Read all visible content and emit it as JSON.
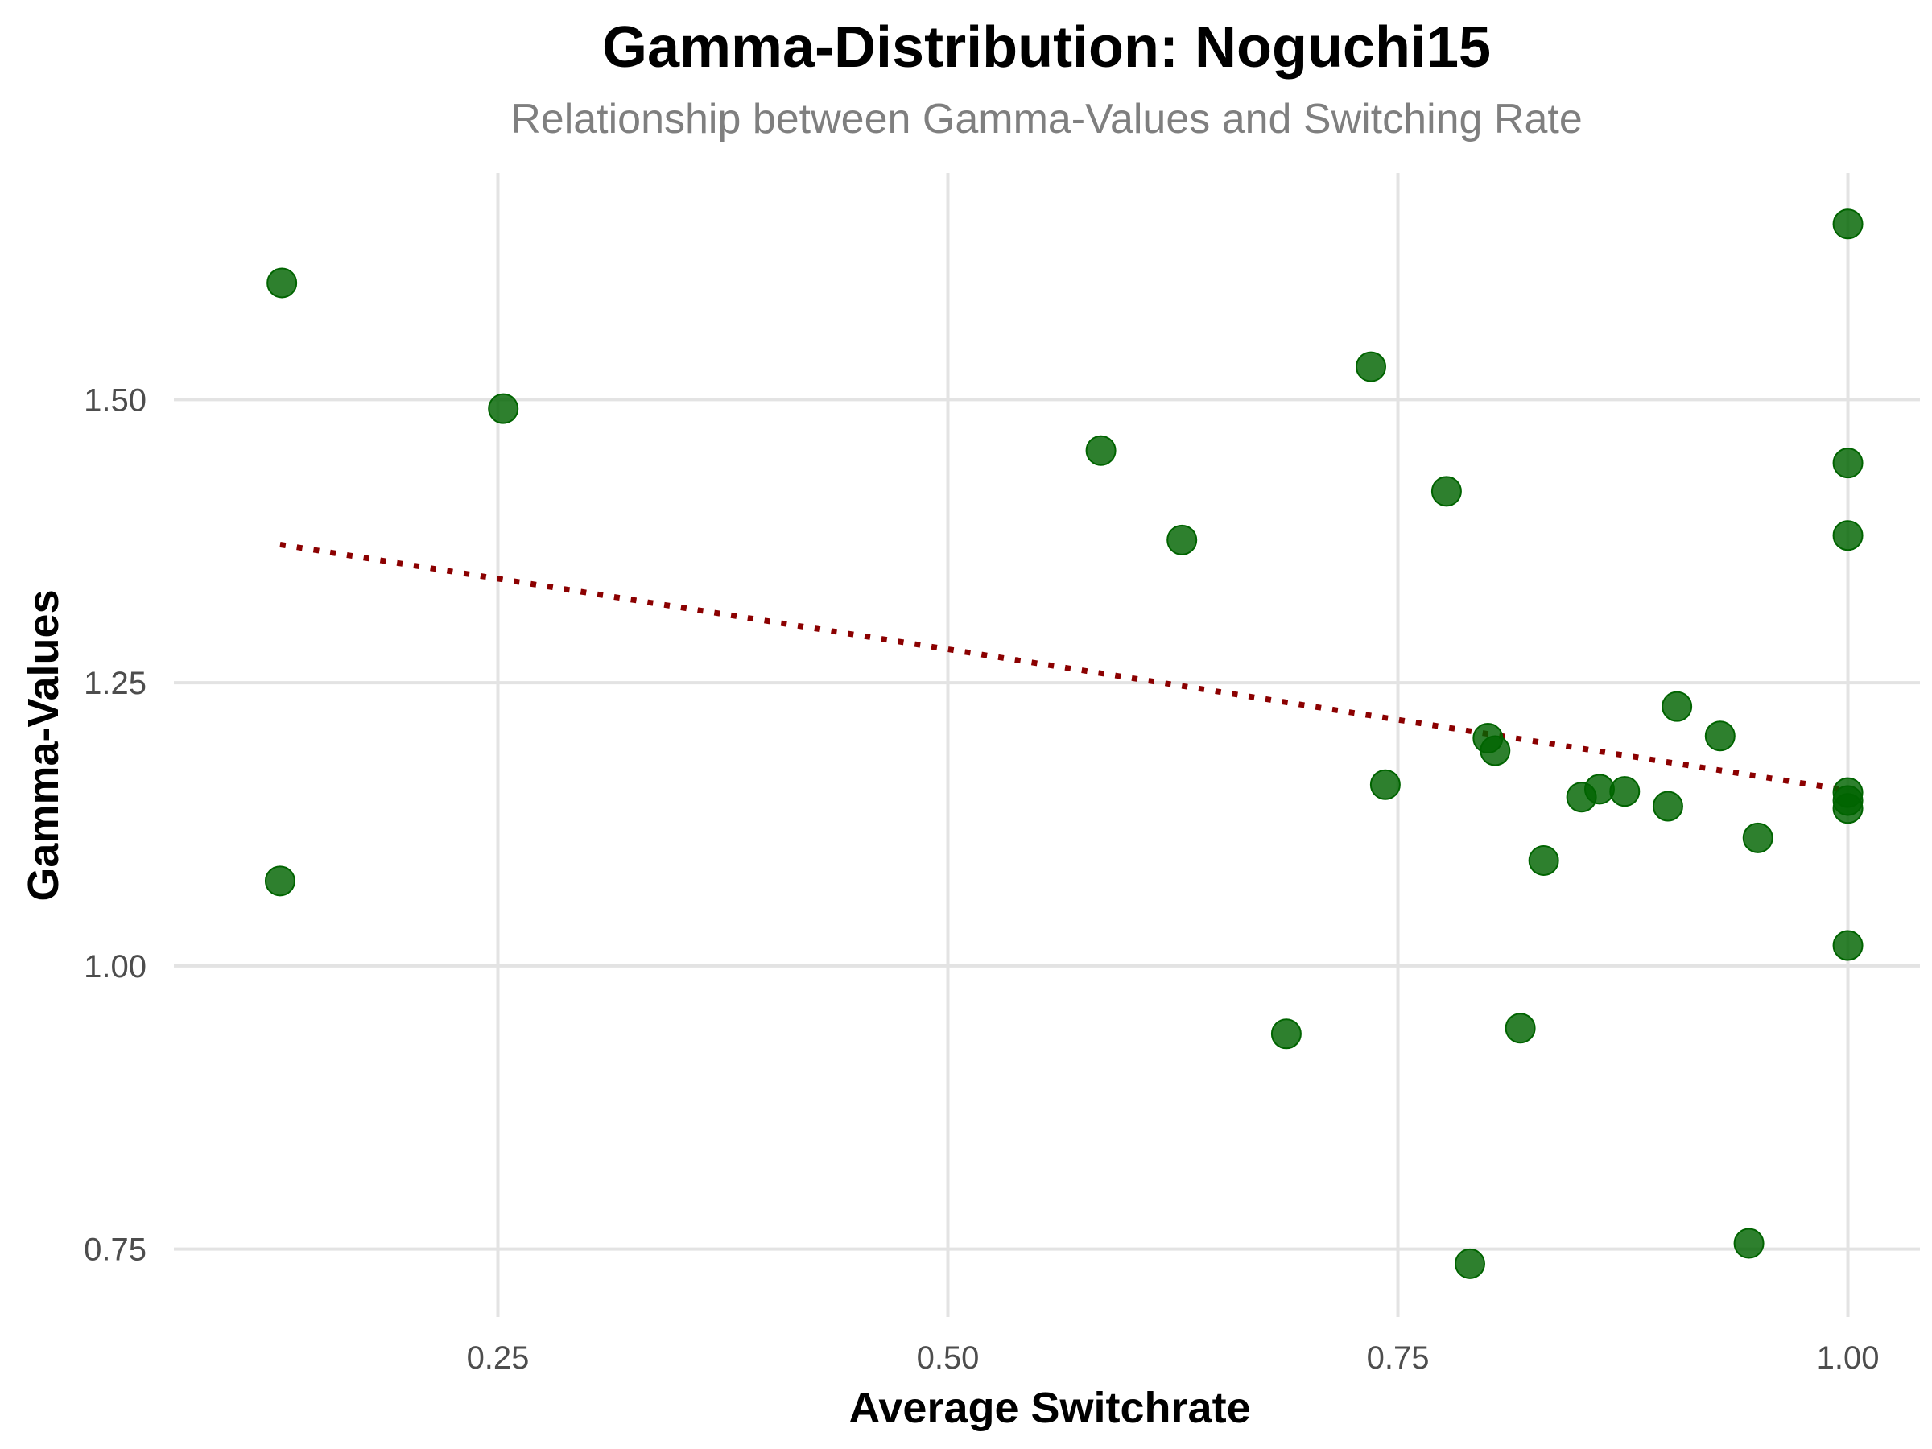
{
  "chart_data": {
    "type": "scatter",
    "title": "Gamma-Distribution: Noguchi15",
    "subtitle": "Relationship between Gamma-Values and Switching Rate",
    "xlabel": "Average Switchrate",
    "ylabel": "Gamma-Values",
    "xlim": [
      0.07,
      1.04
    ],
    "ylim": [
      0.69,
      1.7
    ],
    "xticks": [
      0.25,
      0.5,
      0.75,
      1.0
    ],
    "xtick_labels": [
      "0.25",
      "0.50",
      "0.75",
      "1.00"
    ],
    "yticks": [
      0.75,
      1.0,
      1.25,
      1.5
    ],
    "ytick_labels": [
      "0.75",
      "1.00",
      "1.25",
      "1.50"
    ],
    "grid": true,
    "point_color": "#006400",
    "trend_color": "#8b0000",
    "points": [
      {
        "x": 0.13,
        "y": 1.603
      },
      {
        "x": 0.129,
        "y": 1.075
      },
      {
        "x": 0.253,
        "y": 1.492
      },
      {
        "x": 0.585,
        "y": 1.455
      },
      {
        "x": 0.63,
        "y": 1.376
      },
      {
        "x": 0.688,
        "y": 0.94
      },
      {
        "x": 0.735,
        "y": 1.529
      },
      {
        "x": 0.743,
        "y": 1.16
      },
      {
        "x": 0.777,
        "y": 1.419
      },
      {
        "x": 0.79,
        "y": 0.737
      },
      {
        "x": 0.8,
        "y": 1.201
      },
      {
        "x": 0.804,
        "y": 1.19
      },
      {
        "x": 0.818,
        "y": 0.945
      },
      {
        "x": 0.831,
        "y": 1.093
      },
      {
        "x": 0.852,
        "y": 1.149
      },
      {
        "x": 0.862,
        "y": 1.156
      },
      {
        "x": 0.876,
        "y": 1.154
      },
      {
        "x": 0.9,
        "y": 1.141
      },
      {
        "x": 0.905,
        "y": 1.229
      },
      {
        "x": 0.929,
        "y": 1.203
      },
      {
        "x": 0.945,
        "y": 0.755
      },
      {
        "x": 0.95,
        "y": 1.113
      },
      {
        "x": 1.0,
        "y": 1.655
      },
      {
        "x": 1.0,
        "y": 1.444
      },
      {
        "x": 1.0,
        "y": 1.38
      },
      {
        "x": 1.0,
        "y": 1.153
      },
      {
        "x": 1.0,
        "y": 1.146
      },
      {
        "x": 1.0,
        "y": 1.139
      },
      {
        "x": 1.0,
        "y": 1.018
      }
    ],
    "trendline": {
      "x": [
        0.129,
        1.0
      ],
      "y": [
        1.372,
        1.155
      ]
    }
  }
}
